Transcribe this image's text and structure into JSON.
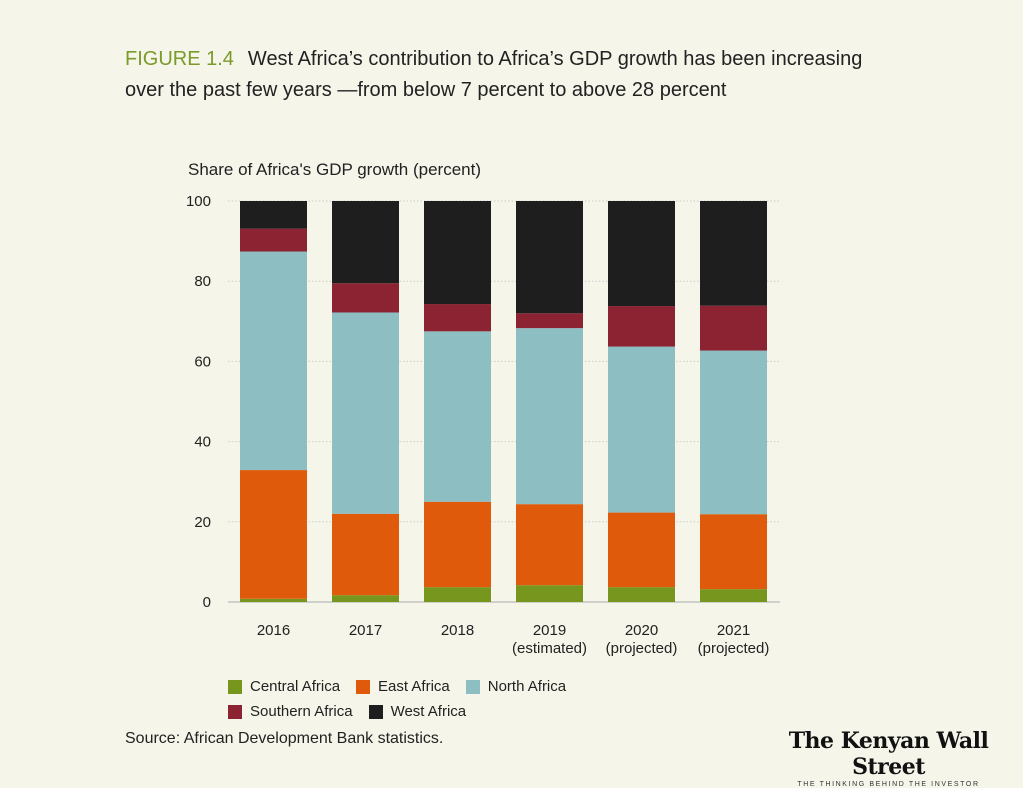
{
  "figure": {
    "label": "FIGURE 1.4",
    "title": "West Africa’s contribution to Africa’s GDP growth has been increasing over the past few years —from below 7 percent to above 28 percent"
  },
  "source": "Source:  African Development Bank statistics.",
  "logo": {
    "name": "The Kenyan Wall Street",
    "tagline": "THE THINKING BEHIND THE INVESTOR"
  },
  "chart_data": {
    "type": "bar",
    "stacked": true,
    "ylabel": "Share of Africa's GDP growth (percent)",
    "ylim": [
      0,
      100
    ],
    "yticks": [
      "0",
      "20",
      "40",
      "60",
      "80",
      "100"
    ],
    "grid": true,
    "legend_position": "bottom",
    "categories": [
      [
        "2016"
      ],
      [
        "2017"
      ],
      [
        "2018"
      ],
      [
        "2019",
        "(estimated)"
      ],
      [
        "2020",
        "(projected)"
      ],
      [
        "2021",
        "(projected)"
      ]
    ],
    "series": [
      {
        "name": "Central Africa",
        "color": "#76961e",
        "values": [
          0.8,
          1.7,
          3.7,
          4.2,
          3.7,
          3.2
        ]
      },
      {
        "name": "East Africa",
        "color": "#e05a0c",
        "values": [
          32.1,
          20.3,
          21.3,
          20.2,
          18.6,
          18.7
        ]
      },
      {
        "name": "North Africa",
        "color": "#8dbec2",
        "values": [
          54.5,
          50.2,
          42.5,
          43.9,
          41.4,
          40.8
        ]
      },
      {
        "name": "Southern Africa",
        "color": "#8b2332",
        "values": [
          5.7,
          7.3,
          6.8,
          3.7,
          10.1,
          11.2
        ]
      },
      {
        "name": "West Africa",
        "color": "#1e1e1e",
        "values": [
          6.9,
          20.5,
          25.7,
          28.0,
          26.2,
          26.1
        ]
      }
    ]
  }
}
